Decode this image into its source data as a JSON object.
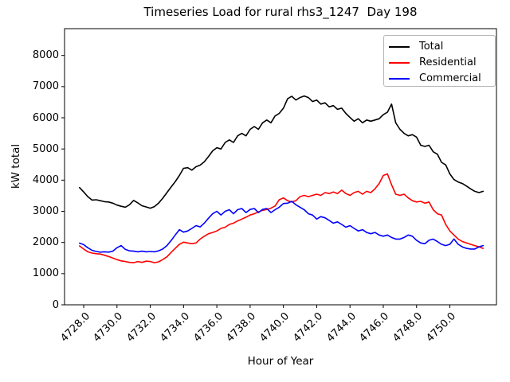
{
  "chart_data": {
    "type": "line",
    "title": "Timeseries Load for rural rhs3_1247  Day 198",
    "xlabel": "Hour of Year",
    "ylabel": "kW total",
    "xlim": [
      4726.85,
      4752.8
    ],
    "ylim": [
      0,
      8860
    ],
    "grid": false,
    "legend_position": "upper right",
    "xticks": [
      4728,
      4730,
      4732,
      4734,
      4736,
      4738,
      4740,
      4742,
      4744,
      4746,
      4748,
      4750
    ],
    "xtick_labels": [
      "4728.0",
      "4730.0",
      "4732.0",
      "4734.0",
      "4736.0",
      "4738.0",
      "4740.0",
      "4742.0",
      "4744.0",
      "4746.0",
      "4748.0",
      "4750.0"
    ],
    "yticks": [
      0,
      1000,
      2000,
      3000,
      4000,
      5000,
      6000,
      7000,
      8000
    ],
    "ytick_labels": [
      "0",
      "1000",
      "2000",
      "3000",
      "4000",
      "5000",
      "6000",
      "7000",
      "8000"
    ],
    "x": [
      4727.75,
      4728.0,
      4728.25,
      4728.5,
      4728.75,
      4729.0,
      4729.25,
      4729.5,
      4729.75,
      4730.0,
      4730.25,
      4730.5,
      4730.75,
      4731.0,
      4731.25,
      4731.5,
      4731.75,
      4732.0,
      4732.25,
      4732.5,
      4732.75,
      4733.0,
      4733.25,
      4733.5,
      4733.75,
      4734.0,
      4734.25,
      4734.5,
      4734.75,
      4735.0,
      4735.25,
      4735.5,
      4735.75,
      4736.0,
      4736.25,
      4736.5,
      4736.75,
      4737.0,
      4737.25,
      4737.5,
      4737.75,
      4738.0,
      4738.25,
      4738.5,
      4738.75,
      4739.0,
      4739.25,
      4739.5,
      4739.75,
      4740.0,
      4740.25,
      4740.5,
      4740.75,
      4741.0,
      4741.25,
      4741.5,
      4741.75,
      4742.0,
      4742.25,
      4742.5,
      4742.75,
      4743.0,
      4743.25,
      4743.5,
      4743.75,
      4744.0,
      4744.25,
      4744.5,
      4744.75,
      4745.0,
      4745.25,
      4745.5,
      4745.75,
      4746.0,
      4746.25,
      4746.5,
      4746.75,
      4747.0,
      4747.25,
      4747.5,
      4747.75,
      4748.0,
      4748.25,
      4748.5,
      4748.75,
      4749.0,
      4749.25,
      4749.5,
      4749.75,
      4750.0,
      4750.25,
      4750.5,
      4750.75,
      4751.0,
      4751.25,
      4751.5,
      4751.75,
      4752.0
    ],
    "series": [
      {
        "name": "Total",
        "color": "#000000",
        "values": [
          3760,
          3620,
          3470,
          3360,
          3370,
          3340,
          3310,
          3300,
          3260,
          3200,
          3160,
          3130,
          3210,
          3350,
          3270,
          3180,
          3140,
          3100,
          3150,
          3260,
          3420,
          3600,
          3780,
          3950,
          4150,
          4380,
          4400,
          4320,
          4430,
          4480,
          4590,
          4760,
          4940,
          5040,
          5000,
          5210,
          5290,
          5210,
          5420,
          5500,
          5420,
          5630,
          5720,
          5630,
          5840,
          5930,
          5840,
          6060,
          6140,
          6310,
          6610,
          6690,
          6570,
          6650,
          6700,
          6650,
          6520,
          6570,
          6440,
          6480,
          6350,
          6390,
          6270,
          6310,
          6140,
          6010,
          5890,
          5970,
          5840,
          5930,
          5890,
          5930,
          5970,
          6100,
          6180,
          6440,
          5840,
          5630,
          5500,
          5420,
          5460,
          5380,
          5120,
          5080,
          5120,
          4910,
          4830,
          4570,
          4490,
          4200,
          4020,
          3940,
          3890,
          3810,
          3720,
          3640,
          3600,
          3640
        ]
      },
      {
        "name": "Residential",
        "color": "#ff0000",
        "values": [
          1890,
          1790,
          1700,
          1660,
          1640,
          1630,
          1590,
          1550,
          1500,
          1450,
          1410,
          1390,
          1360,
          1350,
          1390,
          1360,
          1400,
          1390,
          1350,
          1380,
          1450,
          1540,
          1680,
          1810,
          1940,
          2010,
          1985,
          1960,
          1985,
          2110,
          2200,
          2280,
          2320,
          2370,
          2450,
          2490,
          2580,
          2620,
          2690,
          2750,
          2810,
          2880,
          2920,
          2980,
          3030,
          3060,
          3100,
          3170,
          3370,
          3430,
          3340,
          3300,
          3340,
          3470,
          3510,
          3470,
          3510,
          3550,
          3510,
          3600,
          3570,
          3620,
          3570,
          3680,
          3570,
          3510,
          3600,
          3640,
          3550,
          3640,
          3600,
          3720,
          3890,
          4150,
          4200,
          3850,
          3550,
          3510,
          3550,
          3430,
          3340,
          3300,
          3320,
          3260,
          3300,
          3050,
          2920,
          2880,
          2580,
          2370,
          2240,
          2110,
          2030,
          1985,
          1940,
          1900,
          1860,
          1810
        ]
      },
      {
        "name": "Commercial",
        "color": "#0000ff",
        "values": [
          1980,
          1930,
          1830,
          1750,
          1710,
          1690,
          1700,
          1690,
          1720,
          1830,
          1900,
          1780,
          1730,
          1720,
          1700,
          1720,
          1700,
          1710,
          1700,
          1730,
          1790,
          1900,
          2060,
          2240,
          2410,
          2330,
          2370,
          2450,
          2540,
          2500,
          2620,
          2780,
          2920,
          3000,
          2880,
          3000,
          3050,
          2920,
          3050,
          3090,
          2960,
          3060,
          3090,
          2960,
          3060,
          3090,
          2960,
          3050,
          3130,
          3250,
          3260,
          3320,
          3210,
          3130,
          3050,
          2920,
          2880,
          2750,
          2830,
          2790,
          2710,
          2620,
          2660,
          2580,
          2490,
          2540,
          2450,
          2370,
          2410,
          2320,
          2280,
          2320,
          2240,
          2200,
          2240,
          2160,
          2110,
          2110,
          2160,
          2240,
          2200,
          2070,
          1985,
          1960,
          2070,
          2110,
          2030,
          1940,
          1900,
          1940,
          2110,
          1940,
          1860,
          1810,
          1790,
          1790,
          1860,
          1900
        ]
      }
    ]
  }
}
